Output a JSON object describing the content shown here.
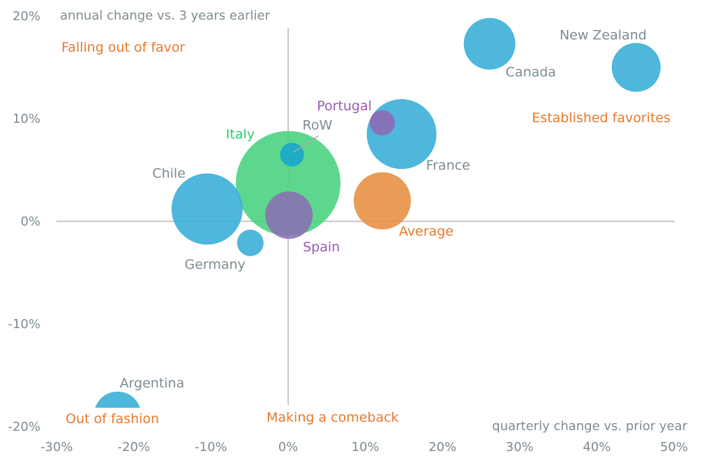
{
  "chart_data": {
    "type": "scatter",
    "subtype": "bubble",
    "title": "",
    "xlabel": "quarterly change vs. prior year",
    "ylabel": "annual change vs. 3 years earlier",
    "xlim": [
      -30,
      50
    ],
    "ylim": [
      -20,
      20
    ],
    "x_ticks": [
      -30,
      -20,
      -10,
      0,
      10,
      20,
      30,
      40,
      50
    ],
    "y_ticks": [
      20,
      10,
      0,
      -10,
      -20
    ],
    "x_tick_labels": [
      "-30%",
      "-20%",
      "-10%",
      "0%",
      "10%",
      "20%",
      "30%",
      "40%",
      "50%"
    ],
    "y_tick_labels": [
      "20%",
      "10%",
      "0%",
      "-10%",
      "-20%"
    ],
    "grid": false,
    "colors": {
      "blue": "#3fb1d8",
      "green": "#4fd483",
      "purple": "#8b6bb5",
      "orange": "#e8924a",
      "quadrant_text": "#e8792b",
      "axis_text": "#7d8b92",
      "axis_line": "#b5b5b5",
      "label_purple": "#9b59b6",
      "label_green": "#2ecc71"
    },
    "quadrant_labels": {
      "top_left": "Falling out of favor",
      "top_right": "Established favorites",
      "bottom_left": "Out of fashion",
      "bottom_right": "Making a comeback"
    },
    "series": [
      {
        "name": "Italy",
        "x": 0.0,
        "y": 3.7,
        "size": 75,
        "color": "green",
        "label_color": "label_green"
      },
      {
        "name": "Chile",
        "x": -10.5,
        "y": 1.2,
        "size": 51,
        "color": "blue",
        "label_color": "axis_text"
      },
      {
        "name": "France",
        "x": 14.7,
        "y": 8.5,
        "size": 50,
        "color": "blue",
        "label_color": "axis_text"
      },
      {
        "name": "Average",
        "x": 12.2,
        "y": 2.0,
        "size": 41,
        "color": "orange",
        "label_color": "quadrant_text"
      },
      {
        "name": "Canada",
        "x": 26.1,
        "y": 17.3,
        "size": 37,
        "color": "blue",
        "label_color": "axis_text"
      },
      {
        "name": "New Zealand",
        "x": 45.1,
        "y": 15.0,
        "size": 35,
        "color": "blue",
        "label_color": "axis_text"
      },
      {
        "name": "Spain",
        "x": 0.1,
        "y": 0.6,
        "size": 34,
        "color": "purple",
        "label_color": "label_purple"
      },
      {
        "name": "Argentina",
        "x": -22.1,
        "y": -18.9,
        "size": 34,
        "color": "blue",
        "label_color": "axis_text"
      },
      {
        "name": "Germany",
        "x": -4.9,
        "y": -2.1,
        "size": 19,
        "color": "blue",
        "label_color": "axis_text"
      },
      {
        "name": "Portugal",
        "x": 12.2,
        "y": 9.6,
        "size": 18,
        "color": "purple",
        "label_color": "label_purple"
      },
      {
        "name": "RoW",
        "x": 0.5,
        "y": 6.5,
        "size": 17,
        "color": "blue",
        "label_color": "axis_text"
      }
    ]
  }
}
